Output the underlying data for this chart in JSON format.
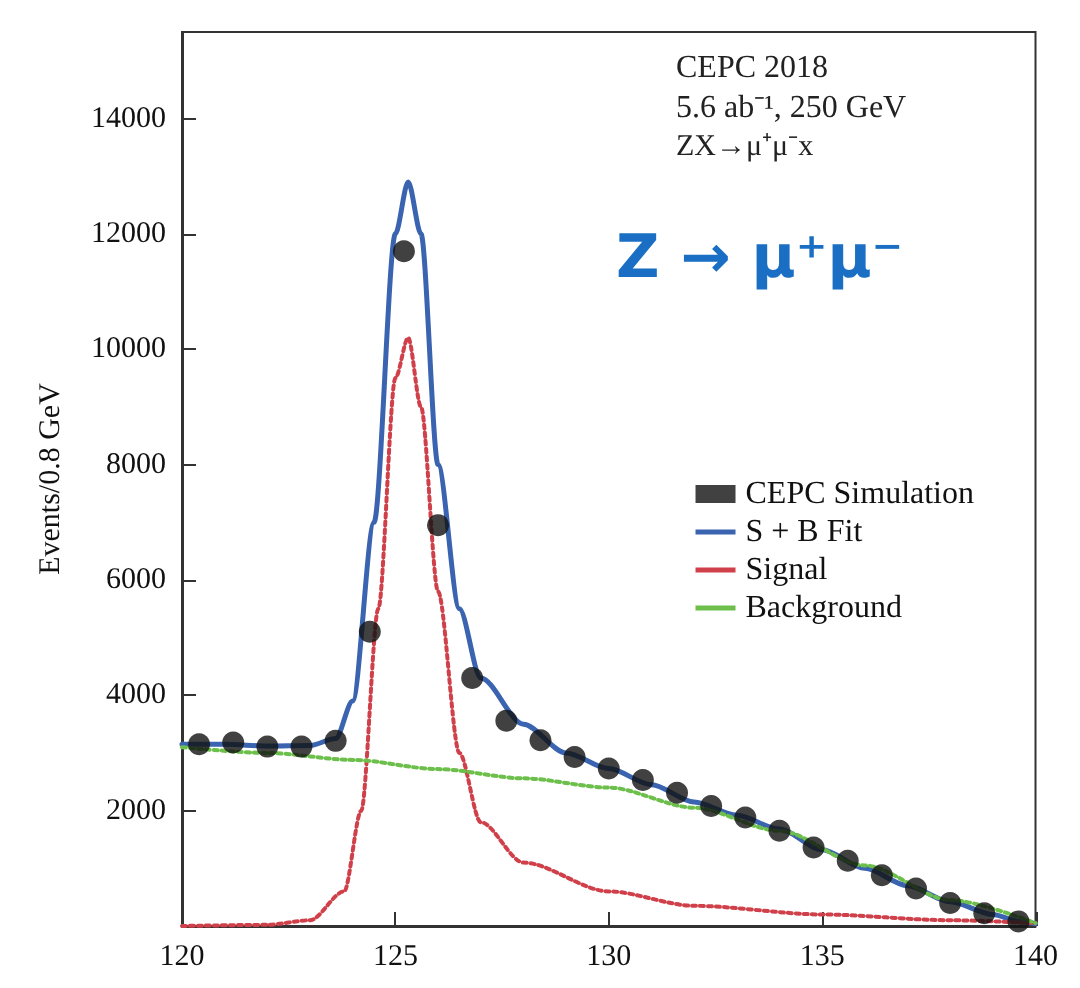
{
  "chart_data": {
    "type": "line",
    "ylabel": "Events/0.8 GeV",
    "xlim": [
      120,
      140
    ],
    "xticks": [
      120,
      125,
      130,
      135,
      140
    ],
    "ylim": [
      0,
      15500
    ],
    "yticks": [
      {
        "value": 0,
        "label": null
      },
      2000,
      4000,
      6000,
      8000,
      10000,
      12000,
      14000
    ],
    "grid": false,
    "legend": "right",
    "annotations": [
      "CEPC 2018",
      "5.6 ab⁻¹, 250 GeV",
      "ZX→μ⁺μ⁻x",
      "Z → μ⁺μ⁻"
    ],
    "series": [
      {
        "name": "CEPC Simulation",
        "type": "scatter",
        "marker": "circle",
        "color": "#111111",
        "x": [
          120.4,
          121.2,
          122.0,
          122.8,
          123.6,
          124.4,
          125.2,
          126.0,
          126.8,
          127.6,
          128.4,
          129.2,
          130.0,
          130.8,
          131.6,
          132.4,
          133.2,
          134.0,
          134.8,
          135.6,
          136.4,
          137.2,
          138.0,
          138.8,
          139.6
        ],
        "values": [
          3150,
          3180,
          3110,
          3110,
          3210,
          5100,
          11700,
          6950,
          4300,
          3560,
          3220,
          2930,
          2730,
          2530,
          2310,
          2080,
          1880,
          1650,
          1360,
          1130,
          880,
          650,
          400,
          220,
          80
        ]
      },
      {
        "name": "S + B Fit",
        "line_style": "solid",
        "color": "#3a63b0",
        "x": [
          120,
          121,
          122,
          123,
          123.6,
          124,
          124.5,
          125,
          125.3,
          125.6,
          126,
          126.5,
          127,
          128,
          129,
          130,
          131,
          132,
          133,
          134,
          135,
          136,
          137,
          138,
          139,
          139.6,
          140
        ],
        "values": [
          3150,
          3150,
          3120,
          3130,
          3250,
          3900,
          7000,
          12000,
          12900,
          12000,
          8000,
          5500,
          4300,
          3500,
          3000,
          2730,
          2450,
          2150,
          1920,
          1680,
          1320,
          1000,
          700,
          420,
          200,
          80,
          40
        ]
      },
      {
        "name": "Signal",
        "line_style": "dotted",
        "color": "#d0404a",
        "x": [
          120,
          122,
          123,
          123.8,
          124.2,
          124.6,
          125,
          125.3,
          125.6,
          126,
          126.5,
          127,
          128,
          130,
          132,
          135,
          138,
          140
        ],
        "values": [
          0,
          20,
          100,
          600,
          2000,
          5500,
          9500,
          10200,
          9000,
          5800,
          3000,
          1800,
          1100,
          600,
          350,
          200,
          100,
          50
        ]
      },
      {
        "name": "Background",
        "line_style": "dotted",
        "color": "#6bbf4a",
        "x": [
          120,
          122,
          124,
          126,
          128,
          130,
          132,
          134,
          136,
          138,
          140
        ],
        "values": [
          3100,
          3000,
          2880,
          2720,
          2560,
          2400,
          2050,
          1650,
          1050,
          450,
          50
        ]
      }
    ]
  }
}
